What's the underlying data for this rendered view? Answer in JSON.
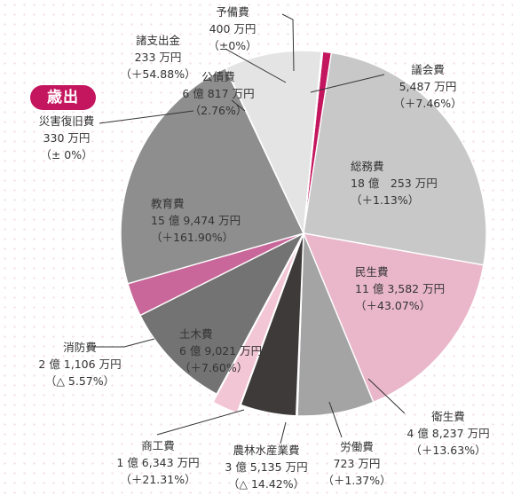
{
  "badge": {
    "label": "歳出",
    "color": "#c4165f"
  },
  "chart_data": {
    "type": "pie",
    "unit": "万円",
    "slices": [
      {
        "name": "議会費",
        "amount": "5,487 万円",
        "change": "（＋7.46%）",
        "value": 5487,
        "color": "#c4165f"
      },
      {
        "name": "総務費",
        "amount": "18 億　253 万円",
        "change": "（＋1.13%）",
        "value": 180253,
        "color": "#c8c8c8"
      },
      {
        "name": "民生費",
        "amount": "11 億 3,582 万円",
        "change": "（＋43.07%）",
        "value": 113582,
        "color": "#e9b7c9"
      },
      {
        "name": "衛生費",
        "amount": "4 億 8,237 万円",
        "change": "（＋13.63%）",
        "value": 48237,
        "color": "#a4a4a4"
      },
      {
        "name": "労働費",
        "amount": "723 万円",
        "change": "（＋1.37%）",
        "value": 723,
        "color": "#d07ea0"
      },
      {
        "name": "農林水産業費",
        "amount": "3 億 5,135 万円",
        "change": "（△ 14.42%）",
        "value": 35135,
        "color": "#3e3a39"
      },
      {
        "name": "商工費",
        "amount": "1 億 6,343 万円",
        "change": "（＋21.31%）",
        "value": 16343,
        "color": "#f3c6d5"
      },
      {
        "name": "土木費",
        "amount": "6 億 9,021 万円",
        "change": "（＋7.60%）",
        "value": 69021,
        "color": "#737373"
      },
      {
        "name": "消防費",
        "amount": "2 億 1,106 万円",
        "change": "（△ 5.57%）",
        "value": 21106,
        "color": "#c9679a"
      },
      {
        "name": "教育費",
        "amount": "15 億 9,474 万円",
        "change": "（＋161.90%）",
        "value": 159474,
        "color": "#8e8e8e"
      },
      {
        "name": "災害復旧費",
        "amount": "330 万円",
        "change": "（± 0%）",
        "value": 330,
        "color": "#b4115e"
      },
      {
        "name": "公債費",
        "amount": "6 億 817 万円",
        "change": "（2.76%）",
        "value": 60817,
        "color": "#e4e4e4"
      },
      {
        "name": "諸支出金",
        "amount": "233 万円",
        "change": "（＋54.88%）",
        "value": 233,
        "color": "#eec5d3"
      },
      {
        "name": "予備費",
        "amount": "400 万円",
        "change": "（±0%）",
        "value": 400,
        "color": "#3a3536"
      }
    ]
  }
}
